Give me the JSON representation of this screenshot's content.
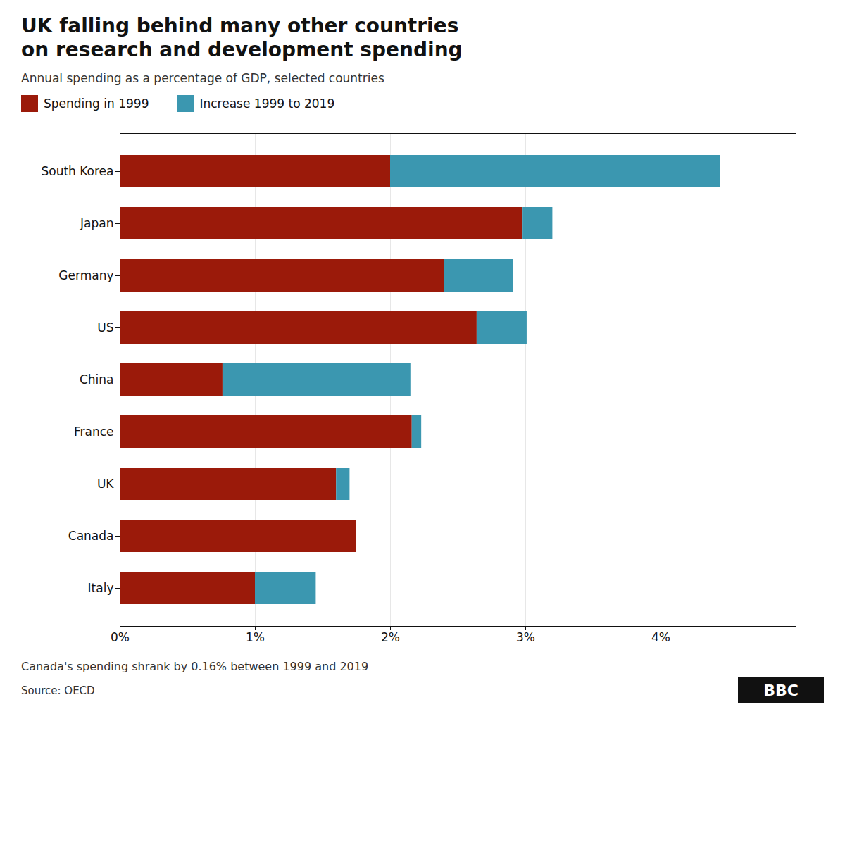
{
  "chart_data": {
    "type": "bar",
    "orientation": "horizontal",
    "stacked": true,
    "title": "UK falling behind many other countries\non research and development spending",
    "subtitle": "Annual spending as a percentage of GDP, selected countries",
    "footnote": "Canada's spending shrank by 0.16% between 1999 and 2019",
    "source": "Source: OECD",
    "logo": "BBC",
    "categories": [
      "South Korea",
      "Japan",
      "Germany",
      "US",
      "China",
      "France",
      "UK",
      "Canada",
      "Italy"
    ],
    "series": [
      {
        "name": "Spending in 1999",
        "color": "#9b1a0a",
        "values": [
          2.0,
          2.98,
          2.4,
          2.64,
          0.76,
          2.16,
          1.6,
          1.75,
          1.0
        ]
      },
      {
        "name": "Increase 1999 to 2019",
        "color": "#3b97b0",
        "values": [
          2.44,
          0.22,
          0.51,
          0.37,
          1.39,
          0.07,
          0.1,
          null,
          0.45
        ]
      }
    ],
    "xlim": [
      0,
      5.0
    ],
    "xticks": [
      {
        "value": 0,
        "label": "0%"
      },
      {
        "value": 1,
        "label": "1%"
      },
      {
        "value": 2,
        "label": "2%"
      },
      {
        "value": 3,
        "label": "3%"
      },
      {
        "value": 4,
        "label": "4%"
      }
    ],
    "grid": true,
    "legend": "top"
  }
}
